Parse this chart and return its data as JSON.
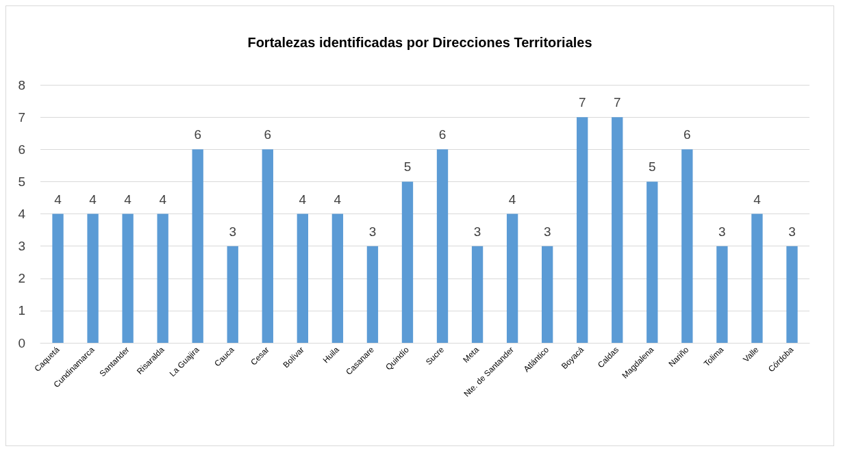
{
  "chart_data": {
    "type": "bar",
    "title": "Fortalezas identificadas por Direcciones Territoriales",
    "categories": [
      "Caquetá",
      "Cundinamarca",
      "Santander",
      "Risaralda",
      "La Guajira",
      "Cauca",
      "Cesar",
      "Bolívar",
      "Huila",
      "Casanare",
      "Quindío",
      "Sucre",
      "Meta",
      "Nte. de Santander",
      "Atlántico",
      "Boyacá",
      "Caldas",
      "Magdalena",
      "Nariño",
      "Tolima",
      "Valle",
      "Córdoba"
    ],
    "values": [
      4,
      4,
      4,
      4,
      6,
      3,
      6,
      4,
      4,
      3,
      5,
      6,
      3,
      4,
      3,
      7,
      7,
      5,
      6,
      3,
      4,
      3
    ],
    "color": "#5b9bd5",
    "ylim": [
      0,
      8
    ],
    "yticks": [
      0,
      1,
      2,
      3,
      4,
      5,
      6,
      7,
      8
    ],
    "grid": "y",
    "data_labels": true
  }
}
